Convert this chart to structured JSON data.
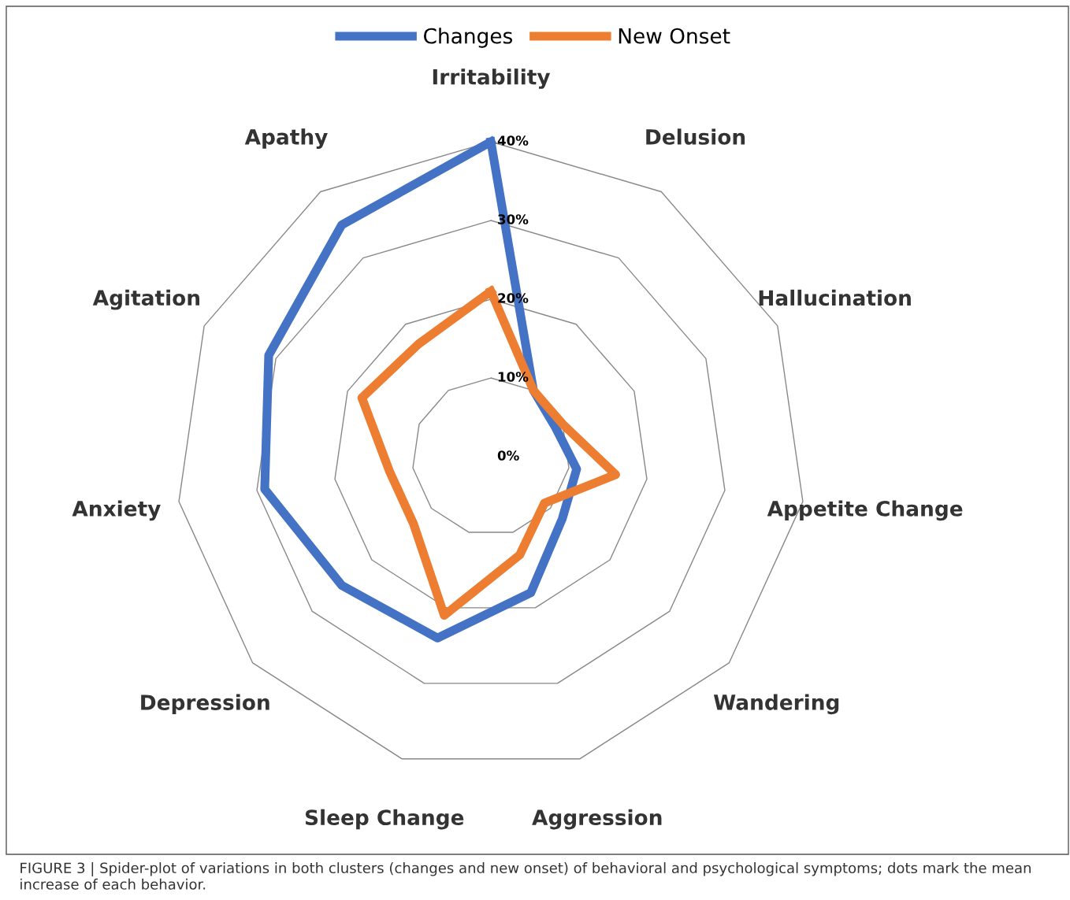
{
  "chart_data": {
    "type": "radar",
    "categories": [
      "Irritability",
      "Delusion",
      "Hallucination",
      "Appetite Change",
      "Wandering",
      "Aggression",
      "Sleep Change",
      "Depression",
      "Anxiety",
      "Agitation",
      "Apathy"
    ],
    "series": [
      {
        "name": "Changes",
        "color": "#4472c4",
        "values": [
          40,
          10,
          9,
          11,
          12,
          18,
          24,
          25,
          29,
          31,
          35
        ]
      },
      {
        "name": "New Onset",
        "color": "#ed7d31",
        "values": [
          21,
          10,
          10,
          16,
          9,
          13,
          21,
          13,
          13,
          18,
          17
        ]
      }
    ],
    "ylim": [
      0,
      40
    ],
    "yticks": [
      {
        "value": 0,
        "label": "0%"
      },
      {
        "value": 10,
        "label": "10%"
      },
      {
        "value": 20,
        "label": "20%"
      },
      {
        "value": 30,
        "label": "30%"
      },
      {
        "value": 40,
        "label": "40%"
      }
    ],
    "grid": true,
    "legend": "top",
    "marker": "none",
    "line_style": "solid",
    "annotations": [
      "FIGURE 3 | Spider-plot of variations in both clusters (changes and new onset) of behavioral and psychological symptoms; dots mark the mean increase of each behavior."
    ]
  }
}
